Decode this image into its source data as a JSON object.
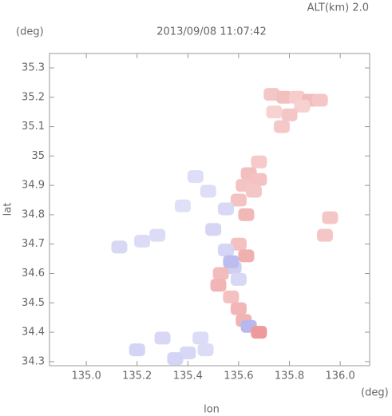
{
  "chart_data": {
    "type": "scatter",
    "title": "2013/09/08 11:07:42",
    "subtitle": "ALT(km) 2.0",
    "y_unit": "(deg)",
    "x_unit": "(deg)",
    "xlabel": "lon",
    "ylabel": "lat",
    "xlim": [
      134.855,
      136.116
    ],
    "ylim": [
      34.286,
      35.349
    ],
    "xticks": [
      {
        "value": 135,
        "label": "135.0"
      },
      135.2,
      135.4,
      135.6,
      135.8,
      {
        "value": 136,
        "label": "136.0"
      }
    ],
    "yticks": [
      34.3,
      34.4,
      34.5,
      34.6,
      34.7,
      34.8,
      34.9,
      35.0,
      35.1,
      35.2,
      35.3
    ],
    "x": [
      135.73,
      135.78,
      135.83,
      135.88,
      135.92,
      135.85,
      135.8,
      135.74,
      135.77,
      135.68,
      135.64,
      135.68,
      135.62,
      135.66,
      135.6,
      135.55,
      135.63,
      135.6,
      135.55,
      135.63,
      135.58,
      135.53,
      135.6,
      135.57,
      135.6,
      135.48,
      135.38,
      135.28,
      135.22,
      135.13,
      135.5,
      135.45,
      135.4,
      135.35,
      135.47,
      135.3,
      135.2,
      135.43,
      135.96,
      135.94,
      135.62,
      135.64,
      135.68,
      135.57,
      135.52
    ],
    "values": [
      35.21,
      35.2,
      35.2,
      35.19,
      35.19,
      35.17,
      35.14,
      35.15,
      35.1,
      34.98,
      34.94,
      34.92,
      34.9,
      34.88,
      34.85,
      34.82,
      34.8,
      34.7,
      34.68,
      34.66,
      34.62,
      34.6,
      34.58,
      34.52,
      34.48,
      34.88,
      34.83,
      34.73,
      34.71,
      34.69,
      34.75,
      34.38,
      34.33,
      34.31,
      34.34,
      34.38,
      34.34,
      34.93,
      34.79,
      34.73,
      34.44,
      34.42,
      34.4,
      34.64,
      34.56
    ],
    "colors": [
      "#f5c6c6",
      "#f3c0c0",
      "#f6cccc",
      "#f2bcbc",
      "#f5c6c6",
      "#f7d0d0",
      "#f5c6c6",
      "#f7d2d2",
      "#f5c8c8",
      "#f6caca",
      "#f3bebe",
      "#f4c2c2",
      "#f4c4c4",
      "#f5c6c6",
      "#f4c2c2",
      "#d9d9f5",
      "#f2b8b8",
      "#f4c0c0",
      "#d5d5f5",
      "#f0b0b0",
      "#cfcff2",
      "#f3bcbc",
      "#d8d8f5",
      "#f4c0c0",
      "#f2b6b6",
      "#dedef8",
      "#e0e0f8",
      "#dcdcf7",
      "#dcdcf7",
      "#d8d8f5",
      "#d6d6f4",
      "#dcdcf7",
      "#d8d8f6",
      "#d4d4f5",
      "#dcdcf7",
      "#d8d8f6",
      "#d4d4f4",
      "#dedef8",
      "#f5c6c6",
      "#f5c6c6",
      "#f0b4b4",
      "#b8b8ee",
      "#ef9a9a",
      "#bcbcf0",
      "#f2b4b4"
    ]
  }
}
